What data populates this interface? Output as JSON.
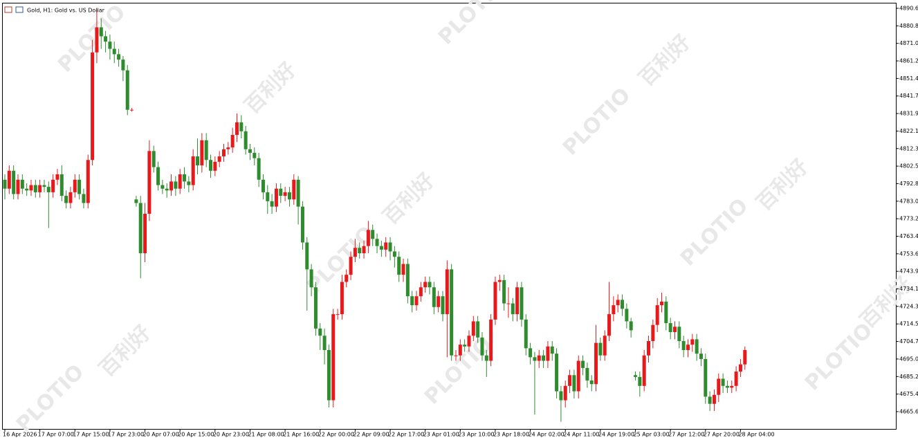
{
  "chart_data": {
    "type": "candlestick",
    "title": "Gold, H1: Gold vs. US Dollar",
    "watermark": [
      "PLOTIO",
      "百利好"
    ],
    "up_color": "#e8191b",
    "down_color": "#2e8b2e",
    "ylim": [
      4656,
      4893.3
    ],
    "yticks": [
      {
        "value": 4890.6,
        "label": "4890.60"
      },
      4880.82,
      4871.04,
      4861.26,
      4851.48,
      {
        "value": 4841.7,
        "label": "4841.70"
      },
      4831.92,
      4822.14,
      4812.36,
      4802.58,
      {
        "value": 4792.8,
        "label": "4792.80"
      },
      4783.02,
      4773.24,
      4763.46,
      4753.68,
      {
        "value": 4743.9,
        "label": "4743.90"
      },
      4734.12,
      4724.34,
      4714.56,
      4704.78,
      {
        "value": 4695,
        "label": "4695.00"
      },
      4685.22,
      4675.44,
      4665.66
    ],
    "categories": [
      "16 Apr 2026",
      null,
      null,
      null,
      null,
      null,
      null,
      null,
      "17 Apr 07:00",
      null,
      null,
      null,
      null,
      null,
      null,
      null,
      "17 Apr 15:00",
      null,
      null,
      null,
      null,
      null,
      null,
      null,
      "17 Apr 23:00",
      null,
      null,
      null,
      null,
      null,
      null,
      null,
      "20 Apr 07:00",
      null,
      null,
      null,
      null,
      null,
      null,
      null,
      "20 Apr 15:00",
      null,
      null,
      null,
      null,
      null,
      null,
      null,
      "20 Apr 23:00",
      null,
      null,
      null,
      null,
      null,
      null,
      null,
      "21 Apr 08:00",
      null,
      null,
      null,
      null,
      null,
      null,
      null,
      "21 Apr 16:00",
      null,
      null,
      null,
      null,
      null,
      null,
      null,
      "22 Apr 00:00",
      null,
      null,
      null,
      null,
      null,
      null,
      null,
      "22 Apr 09:00",
      null,
      null,
      null,
      null,
      null,
      null,
      null,
      "22 Apr 17:00",
      null,
      null,
      null,
      null,
      null,
      null,
      null,
      "23 Apr 01:00",
      null,
      null,
      null,
      null,
      null,
      null,
      null,
      "23 Apr 10:00",
      null,
      null,
      null,
      null,
      null,
      null,
      null,
      "23 Apr 18:00",
      null,
      null,
      null,
      null,
      null,
      null,
      null,
      "24 Apr 02:00",
      null,
      null,
      null,
      null,
      null,
      null,
      null,
      "24 Apr 11:00",
      null,
      null,
      null,
      null,
      null,
      null,
      null,
      "24 Apr 19:00",
      null,
      null,
      null,
      null,
      null,
      null,
      null,
      "25 Apr 03:00",
      null,
      null,
      null,
      null,
      null,
      null,
      null,
      "27 Apr 12:00",
      null,
      null,
      null,
      null,
      null,
      null,
      null,
      "27 Apr 20:00",
      null,
      null,
      null,
      null,
      null,
      null,
      null,
      "28 Apr 04:00",
      null
    ],
    "open": [
      4795,
      4790,
      4800,
      4787,
      4795,
      4790,
      4789,
      4792,
      4788,
      4792,
      4791,
      4788,
      4795,
      4798,
      4786,
      4782,
      4788,
      4795,
      4787,
      4782,
      4806,
      4866,
      4880,
      4875,
      4872,
      4868,
      4865,
      4862,
      4856,
      4834,
      4784,
      4782,
      4754,
      4776,
      4811,
      4802,
      4792,
      4790,
      4789,
      4794,
      4790,
      4798,
      4794,
      4792,
      4808,
      4803,
      4817,
      4806,
      4800,
      4805,
      4808,
      4812,
      4813,
      4820,
      4827,
      4822,
      4812,
      4810,
      4807,
      4795,
      4788,
      4783,
      4780,
      4790,
      4786,
      4788,
      4784,
      4795,
      4780,
      4760,
      4745,
      4735,
      4712,
      4708,
      4700,
      4672,
      4720,
      4720,
      4738,
      4742,
      4752,
      4757,
      4754,
      4758,
      4767,
      4762,
      4758,
      4756,
      4760,
      4755,
      4752,
      4742,
      4748,
      4730,
      4725,
      4730,
      4735,
      4738,
      4735,
      4724,
      4730,
      4720,
      4745,
      4697,
      4697,
      4703,
      4702,
      4708,
      4716,
      4707,
      4697,
      4694,
      4717,
      4738,
      4739,
      4726,
      4726,
      4720,
      4735,
      4717,
      4701,
      4696,
      4694,
      4697,
      4694,
      4702,
      4698,
      4677,
      4672,
      4680,
      4686,
      4677,
      4694,
      4690,
      4683,
      4681,
      4704,
      4697,
      4708,
      4720,
      4725,
      4728,
      4723,
      4716,
      4686,
      4685,
      4680,
      4697,
      4705,
      4714,
      4725,
      4727,
      4715,
      4710,
      4713,
      4705,
      4700,
      4703,
      4706,
      4698,
      4695,
      4674,
      4670,
      4675,
      4684,
      4680,
      4679,
      4680,
      4688,
      4692
    ],
    "high": [
      4798,
      4803,
      4803,
      4798,
      4798,
      4793,
      4795,
      4795,
      4795,
      4795,
      4794,
      4798,
      4801,
      4803,
      4789,
      4791,
      4798,
      4798,
      4790,
      4809,
      4873,
      4890,
      4885,
      4878,
      4876,
      4872,
      4868,
      4864,
      4859,
      4835,
      4786,
      4786,
      4782,
      4817,
      4814,
      4805,
      4795,
      4793,
      4798,
      4797,
      4801,
      4802,
      4797,
      4812,
      4818,
      4821,
      4821,
      4809,
      4808,
      4811,
      4815,
      4816,
      4824,
      4832,
      4831,
      4825,
      4815,
      4813,
      4810,
      4798,
      4792,
      4787,
      4793,
      4793,
      4791,
      4791,
      4798,
      4797,
      4783,
      4763,
      4748,
      4738,
      4715,
      4712,
      4703,
      4723,
      4723,
      4742,
      4745,
      4755,
      4762,
      4760,
      4761,
      4772,
      4770,
      4765,
      4761,
      4763,
      4763,
      4758,
      4755,
      4751,
      4751,
      4733,
      4733,
      4738,
      4741,
      4741,
      4738,
      4733,
      4733,
      4750,
      4748,
      4700,
      4706,
      4706,
      4711,
      4719,
      4719,
      4710,
      4700,
      4720,
      4741,
      4742,
      4742,
      4735,
      4729,
      4738,
      4738,
      4720,
      4704,
      4699,
      4700,
      4700,
      4705,
      4705,
      4701,
      4680,
      4683,
      4689,
      4689,
      4697,
      4697,
      4693,
      4686,
      4714,
      4707,
      4711,
      4738,
      4730,
      4731,
      4731,
      4726,
      4718,
      4688,
      4688,
      4700,
      4708,
      4717,
      4729,
      4732,
      4730,
      4718,
      4716,
      4716,
      4708,
      4706,
      4709,
      4709,
      4701,
      4698,
      4677,
      4678,
      4687,
      4687,
      4683,
      4683,
      4691,
      4695,
      4702
    ],
    "low": [
      4784,
      4787,
      4784,
      4784,
      4787,
      4786,
      4786,
      4785,
      4785,
      4788,
      4768,
      4785,
      4792,
      4783,
      4779,
      4779,
      4785,
      4784,
      4779,
      4779,
      4803,
      4860,
      4868,
      4866,
      4862,
      4860,
      4858,
      4850,
      4831,
      4833,
      4780,
      4740,
      4749,
      4772,
      4799,
      4789,
      4787,
      4785,
      4786,
      4786,
      4787,
      4790,
      4788,
      4789,
      4798,
      4799,
      4802,
      4796,
      4797,
      4802,
      4805,
      4809,
      4810,
      4816,
      4818,
      4809,
      4806,
      4803,
      4791,
      4784,
      4776,
      4776,
      4777,
      4782,
      4783,
      4780,
      4781,
      4770,
      4756,
      4722,
      4730,
      4708,
      4700,
      4692,
      4668,
      4668,
      4717,
      4717,
      4735,
      4739,
      4749,
      4751,
      4751,
      4754,
      4758,
      4754,
      4752,
      4752,
      4750,
      4746,
      4738,
      4738,
      4726,
      4721,
      4722,
      4727,
      4732,
      4731,
      4720,
      4721,
      4716,
      4696,
      4694,
      4694,
      4694,
      4699,
      4699,
      4705,
      4704,
      4694,
      4685,
      4691,
      4714,
      4733,
      4722,
      4718,
      4716,
      4716,
      4713,
      4697,
      4692,
      4664,
      4690,
      4690,
      4690,
      4694,
      4673,
      4660,
      4668,
      4676,
      4673,
      4673,
      4686,
      4679,
      4677,
      4677,
      4694,
      4694,
      4705,
      4716,
      4721,
      4719,
      4712,
      4707,
      4683,
      4674,
      4677,
      4693,
      4701,
      4710,
      4721,
      4711,
      4706,
      4706,
      4701,
      4696,
      4696,
      4699,
      4694,
      4691,
      4670,
      4666,
      4666,
      4671,
      4676,
      4676,
      4676,
      4677,
      4685,
      4689
    ],
    "close": [
      4790,
      4800,
      4787,
      4795,
      4790,
      4789,
      4792,
      4788,
      4792,
      4791,
      4788,
      4795,
      4798,
      4786,
      4782,
      4788,
      4795,
      4787,
      4782,
      4806,
      4866,
      4880,
      4875,
      4872,
      4868,
      4865,
      4862,
      4856,
      4834,
      4834,
      4782,
      4754,
      4776,
      4811,
      4802,
      4792,
      4790,
      4789,
      4794,
      4790,
      4798,
      4794,
      4792,
      4808,
      4803,
      4817,
      4806,
      4800,
      4805,
      4808,
      4812,
      4813,
      4820,
      4827,
      4822,
      4812,
      4810,
      4807,
      4795,
      4788,
      4783,
      4780,
      4790,
      4786,
      4788,
      4784,
      4795,
      4780,
      4760,
      4745,
      4735,
      4712,
      4708,
      4700,
      4672,
      4720,
      4720,
      4738,
      4742,
      4752,
      4757,
      4754,
      4758,
      4767,
      4762,
      4758,
      4756,
      4760,
      4755,
      4752,
      4742,
      4748,
      4730,
      4725,
      4730,
      4735,
      4738,
      4735,
      4724,
      4730,
      4720,
      4745,
      4697,
      4697,
      4703,
      4702,
      4708,
      4716,
      4707,
      4697,
      4694,
      4717,
      4738,
      4739,
      4726,
      4726,
      4720,
      4735,
      4717,
      4701,
      4696,
      4694,
      4697,
      4694,
      4702,
      4698,
      4677,
      4672,
      4680,
      4686,
      4677,
      4694,
      4690,
      4683,
      4681,
      4704,
      4697,
      4708,
      4720,
      4725,
      4728,
      4723,
      4716,
      4711,
      4685,
      4680,
      4697,
      4705,
      4714,
      4725,
      4727,
      4715,
      4710,
      4713,
      4705,
      4700,
      4703,
      4706,
      4698,
      4695,
      4674,
      4670,
      4675,
      4684,
      4680,
      4679,
      4680,
      4688,
      4692,
      4700
    ]
  }
}
